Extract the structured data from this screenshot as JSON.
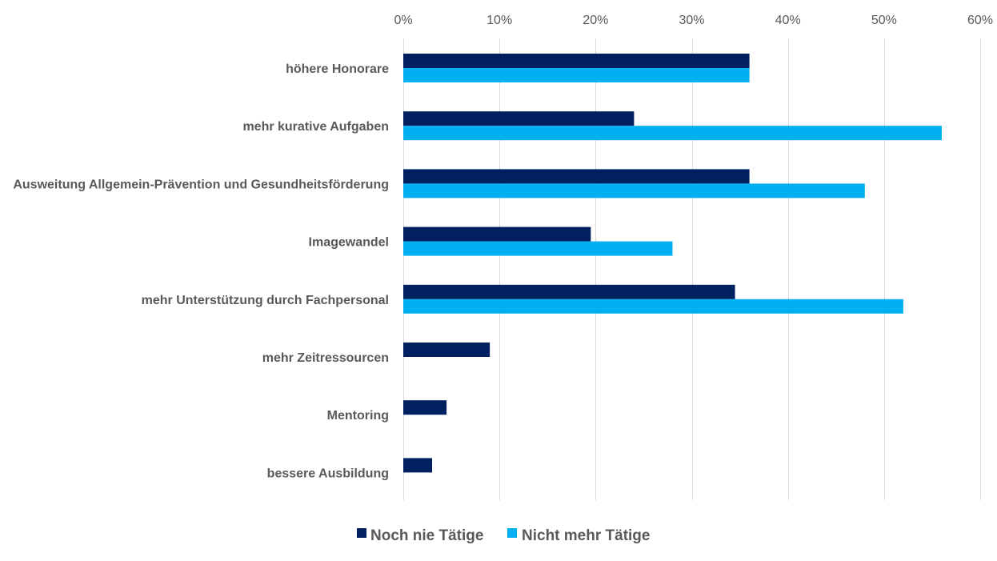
{
  "chart_data": {
    "type": "bar",
    "orientation": "horizontal",
    "categories": [
      "höhere Honorare",
      "mehr kurative Aufgaben",
      "Ausweitung Allgemein-Prävention und Gesundheitsförderung",
      "Imagewandel",
      "mehr Unterstützung durch Fachpersonal",
      "mehr Zeitressourcen",
      "Mentoring",
      "bessere Ausbildung"
    ],
    "series": [
      {
        "name": "Noch nie Tätige",
        "color": "#002060",
        "values": [
          36,
          24,
          36,
          19.5,
          34.5,
          9,
          4.5,
          3
        ]
      },
      {
        "name": "Nicht mehr Tätige",
        "color": "#00b0f0",
        "values": [
          36,
          56,
          48,
          28,
          52,
          0,
          0,
          0
        ]
      }
    ],
    "xlim": [
      0,
      60
    ],
    "x_ticks": [
      0,
      10,
      20,
      30,
      40,
      50,
      60
    ],
    "x_tick_labels": [
      "0%",
      "10%",
      "20%",
      "30%",
      "40%",
      "50%",
      "60%"
    ],
    "axis_position": "top",
    "grid": true,
    "legend": "bottom",
    "title": "",
    "xlabel": "",
    "ylabel": ""
  }
}
